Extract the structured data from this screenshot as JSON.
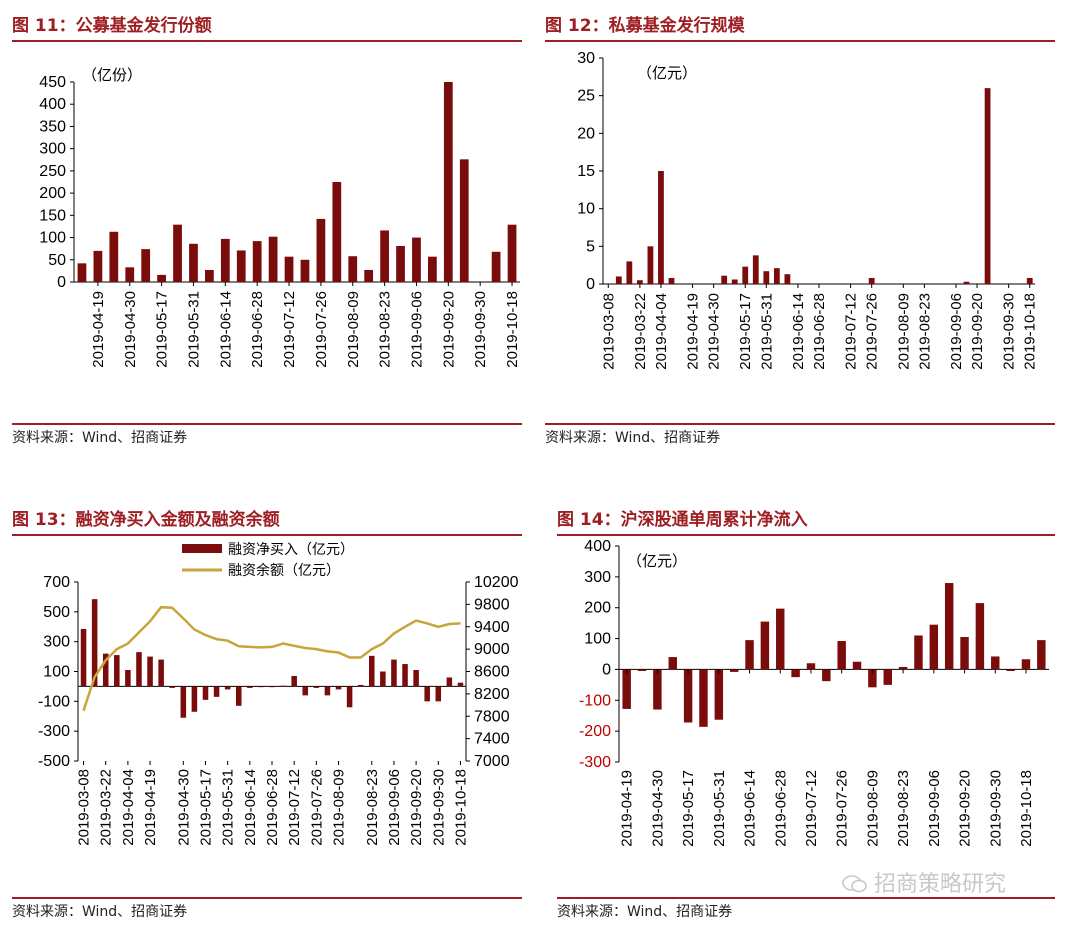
{
  "charts": [
    {
      "title": "图 11：公募基金发行份额",
      "source": "资料来源：Wind、招商证券",
      "chart_data": {
        "type": "bar",
        "unit_label": "（亿份）",
        "ylim": [
          0,
          450
        ],
        "yticks": [
          0,
          50,
          100,
          150,
          200,
          250,
          300,
          350,
          400,
          450
        ],
        "tick_labels": [
          "2019-04-19",
          "2019-04-30",
          "2019-05-17",
          "2019-05-31",
          "2019-06-14",
          "2019-06-28",
          "2019-07-12",
          "2019-07-26",
          "2019-08-09",
          "2019-08-23",
          "2019-09-06",
          "2019-09-20",
          "2019-09-30",
          "2019-10-18"
        ],
        "values": [
          42,
          70,
          113,
          33,
          74,
          16,
          129,
          86,
          27,
          97,
          71,
          92,
          102,
          57,
          50,
          142,
          225,
          58,
          27,
          116,
          81,
          100,
          57,
          450,
          276,
          0,
          68,
          129
        ],
        "bar_color": "#7b0c0c"
      }
    },
    {
      "title": "图 12：私募基金发行规模",
      "source": "资料来源：Wind、招商证券",
      "chart_data": {
        "type": "bar",
        "unit_label": "（亿元）",
        "ylim": [
          0,
          30
        ],
        "yticks": [
          0,
          5,
          10,
          15,
          20,
          25,
          30
        ],
        "tick_labels": [
          "2019-03-08",
          "2019-03-22",
          "2019-04-04",
          "2019-04-19",
          "2019-04-30",
          "2019-05-17",
          "2019-05-31",
          "2019-06-14",
          "2019-06-28",
          "2019-07-12",
          "2019-07-26",
          "2019-08-09",
          "2019-08-23",
          "2019-09-06",
          "2019-09-20",
          "2019-09-30",
          "2019-10-18"
        ],
        "values": [
          0,
          1,
          3,
          0.5,
          5,
          15,
          0.8,
          0,
          0,
          0,
          0,
          1.1,
          0.6,
          2.3,
          3.8,
          1.7,
          2.1,
          1.3,
          0,
          0,
          0,
          0,
          0,
          0,
          0,
          0.8,
          0,
          0,
          0,
          0,
          0,
          0,
          0,
          0,
          0.3,
          0,
          26,
          0,
          0,
          0,
          0.8
        ],
        "bar_color": "#7b0c0c"
      }
    },
    {
      "title": "图 13：融资净买入金额及融资余额",
      "source": "资料来源：Wind、招商证券",
      "chart_data": {
        "type": "bar+line",
        "legend": [
          "融资净买入（亿元）",
          "融资余额（亿元）"
        ],
        "legend_position": "top",
        "ylim_left": [
          -500,
          700
        ],
        "yticks_left": [
          -500,
          -300,
          -100,
          100,
          300,
          500,
          700
        ],
        "ylim_right": [
          7000,
          10200
        ],
        "yticks_right": [
          7000,
          7400,
          7800,
          8200,
          8600,
          9000,
          9400,
          9800,
          10200
        ],
        "tick_labels": [
          "2019-03-08",
          "2019-03-22",
          "2019-04-04",
          "2019-04-19",
          "2019-04-30",
          "2019-05-17",
          "2019-05-31",
          "2019-06-14",
          "2019-06-28",
          "2019-07-12",
          "2019-07-26",
          "2019-08-09",
          "2019-08-23",
          "2019-09-06",
          "2019-09-20",
          "2019-09-30",
          "2019-10-18"
        ],
        "bar_values": [
          385,
          585,
          220,
          210,
          110,
          230,
          200,
          180,
          -10,
          -210,
          -170,
          -90,
          -70,
          -20,
          -130,
          -10,
          -5,
          -5,
          5,
          70,
          -60,
          -10,
          -60,
          -20,
          -140,
          10,
          205,
          100,
          180,
          150,
          110,
          -100,
          -100,
          60,
          25
        ],
        "line_values": [
          7900,
          8500,
          8800,
          9000,
          9100,
          9300,
          9500,
          9750,
          9740,
          9550,
          9350,
          9250,
          9180,
          9150,
          9050,
          9040,
          9030,
          9040,
          9100,
          9060,
          9020,
          9000,
          8960,
          8940,
          8850,
          8850,
          9000,
          9100,
          9280,
          9400,
          9510,
          9460,
          9400,
          9450,
          9460
        ],
        "bar_color": "#7b0c0c",
        "line_color": "#c8a43c"
      }
    },
    {
      "title": "图 14：沪深股通单周累计净流入",
      "source": "资料来源：Wind、招商证券",
      "chart_data": {
        "type": "bar",
        "unit_label": "（亿元）",
        "ylim": [
          -300,
          400
        ],
        "yticks": [
          -300,
          -200,
          -100,
          0,
          100,
          200,
          300,
          400
        ],
        "tick_labels": [
          "2019-04-19",
          "2019-04-30",
          "2019-05-17",
          "2019-05-31",
          "2019-06-14",
          "2019-06-28",
          "2019-07-12",
          "2019-07-26",
          "2019-08-09",
          "2019-08-23",
          "2019-09-06",
          "2019-09-20",
          "2019-09-30",
          "2019-10-18"
        ],
        "values": [
          -128,
          -5,
          -130,
          40,
          -172,
          -186,
          -163,
          -8,
          95,
          155,
          197,
          -25,
          20,
          -38,
          92,
          25,
          -58,
          -50,
          8,
          110,
          145,
          280,
          105,
          215,
          42,
          -5,
          33,
          95
        ],
        "bar_color": "#7b0c0c"
      }
    }
  ],
  "watermark": "招商策略研究"
}
